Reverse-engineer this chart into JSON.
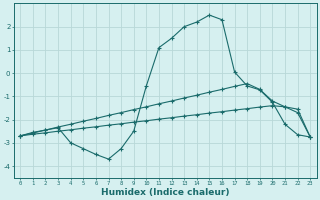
{
  "x": [
    0,
    1,
    2,
    3,
    4,
    5,
    6,
    7,
    8,
    9,
    10,
    11,
    12,
    13,
    14,
    15,
    16,
    17,
    18,
    19,
    20,
    21,
    22,
    23
  ],
  "line1": [
    -2.7,
    -2.55,
    -2.45,
    -2.35,
    -3.0,
    -3.25,
    -3.5,
    -3.7,
    -3.25,
    -2.5,
    -0.55,
    1.1,
    1.5,
    2.0,
    2.2,
    2.5,
    2.3,
    0.05,
    -0.55,
    -0.72,
    -1.25,
    -2.2,
    -2.65,
    -2.75
  ],
  "line2": [
    -2.7,
    -2.58,
    -2.45,
    -2.32,
    -2.2,
    -2.07,
    -1.95,
    -1.82,
    -1.7,
    -1.57,
    -1.45,
    -1.32,
    -1.2,
    -1.07,
    -0.95,
    -0.82,
    -0.7,
    -0.57,
    -0.45,
    -0.7,
    -1.2,
    -1.45,
    -1.7,
    -2.75
  ],
  "line3": [
    -2.7,
    -2.63,
    -2.57,
    -2.5,
    -2.44,
    -2.37,
    -2.31,
    -2.24,
    -2.18,
    -2.11,
    -2.05,
    -1.98,
    -1.92,
    -1.85,
    -1.79,
    -1.72,
    -1.66,
    -1.59,
    -1.53,
    -1.46,
    -1.4,
    -1.45,
    -1.55,
    -2.75
  ],
  "line_color": "#1a6b6b",
  "bg_color": "#d6f0f0",
  "grid_color": "#b8d8d8",
  "xlabel": "Humidex (Indice chaleur)",
  "ylim": [
    -4.5,
    3.0
  ],
  "xlim": [
    -0.5,
    23.5
  ],
  "yticks": [
    -4,
    -3,
    -2,
    -1,
    0,
    1,
    2
  ],
  "xticks": [
    0,
    1,
    2,
    3,
    4,
    5,
    6,
    7,
    8,
    9,
    10,
    11,
    12,
    13,
    14,
    15,
    16,
    17,
    18,
    19,
    20,
    21,
    22,
    23
  ],
  "xtick_labels": [
    "0",
    "1",
    "2",
    "3",
    "4",
    "5",
    "6",
    "7",
    "8",
    "9",
    "10",
    "11",
    "12",
    "13",
    "14",
    "15",
    "16",
    "17",
    "18",
    "19",
    "20",
    "21",
    "22",
    "23"
  ]
}
